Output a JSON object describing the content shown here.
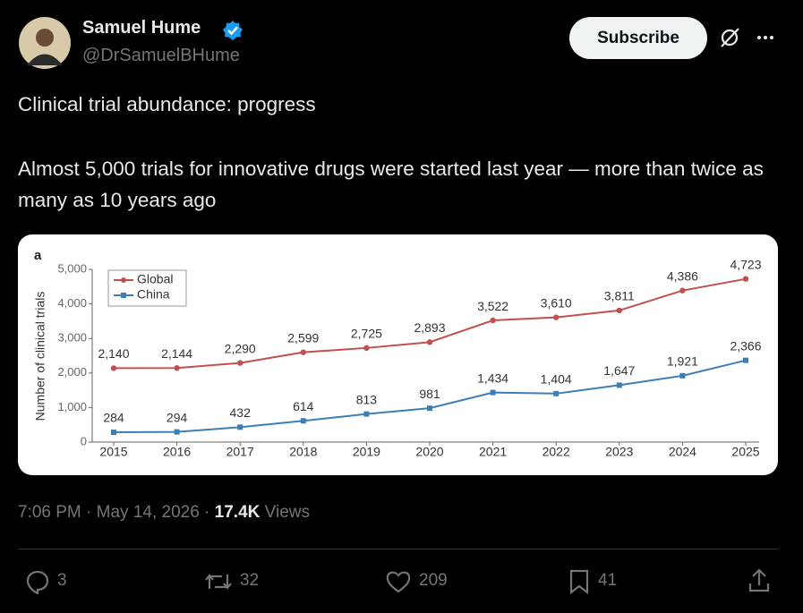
{
  "author": {
    "name": "Samuel Hume",
    "handle": "@DrSamuelBHume"
  },
  "subscribe": "Subscribe",
  "text": [
    "Clinical trial abundance: progress",
    "Almost 5,000 trials for innovative drugs were started last year — more than twice as many as 10 years ago"
  ],
  "chart_data": {
    "type": "line",
    "panel_label": "a",
    "y_label": "Number of clinical trials",
    "categories": [
      "2015",
      "2016",
      "2017",
      "2018",
      "2019",
      "2020",
      "2021",
      "2022",
      "2023",
      "2024",
      "2025"
    ],
    "series": [
      {
        "name": "Global",
        "color": "#c0504d",
        "marker": "circle",
        "values": [
          2140,
          2144,
          2290,
          2599,
          2725,
          2893,
          3522,
          3610,
          3811,
          4386,
          4723
        ],
        "value_labels": [
          "2,140",
          "2,144",
          "2,290",
          "2,599",
          "2,725",
          "2,893",
          "3,522",
          "3,610",
          "3,811",
          "4,386",
          "4,723"
        ]
      },
      {
        "name": "China",
        "color": "#3d7fb5",
        "marker": "square",
        "values": [
          284,
          294,
          432,
          614,
          813,
          981,
          1434,
          1404,
          1647,
          1921,
          2366
        ],
        "value_labels": [
          "284",
          "294",
          "432",
          "614",
          "813",
          "981",
          "1,434",
          "1,404",
          "1,647",
          "1,921",
          "2,366"
        ]
      }
    ],
    "ylim": [
      0,
      5000
    ],
    "yticks": [
      0,
      {
        "value": 1000,
        "label": "1,000"
      },
      {
        "value": 2000,
        "label": "2,000"
      },
      {
        "value": 3000,
        "label": "3,000"
      },
      {
        "value": 4000,
        "label": "4,000"
      },
      {
        "value": 5000,
        "label": "5,000"
      }
    ],
    "grid": false,
    "legend": "upper left"
  },
  "meta": {
    "posted": "7:06 PM · May 14, 2026 ·",
    "views": "17.4K",
    "views_label": "Views"
  },
  "actions": {
    "replies": 3,
    "reposts": 32,
    "likes": 209,
    "bookmarks": 41
  }
}
